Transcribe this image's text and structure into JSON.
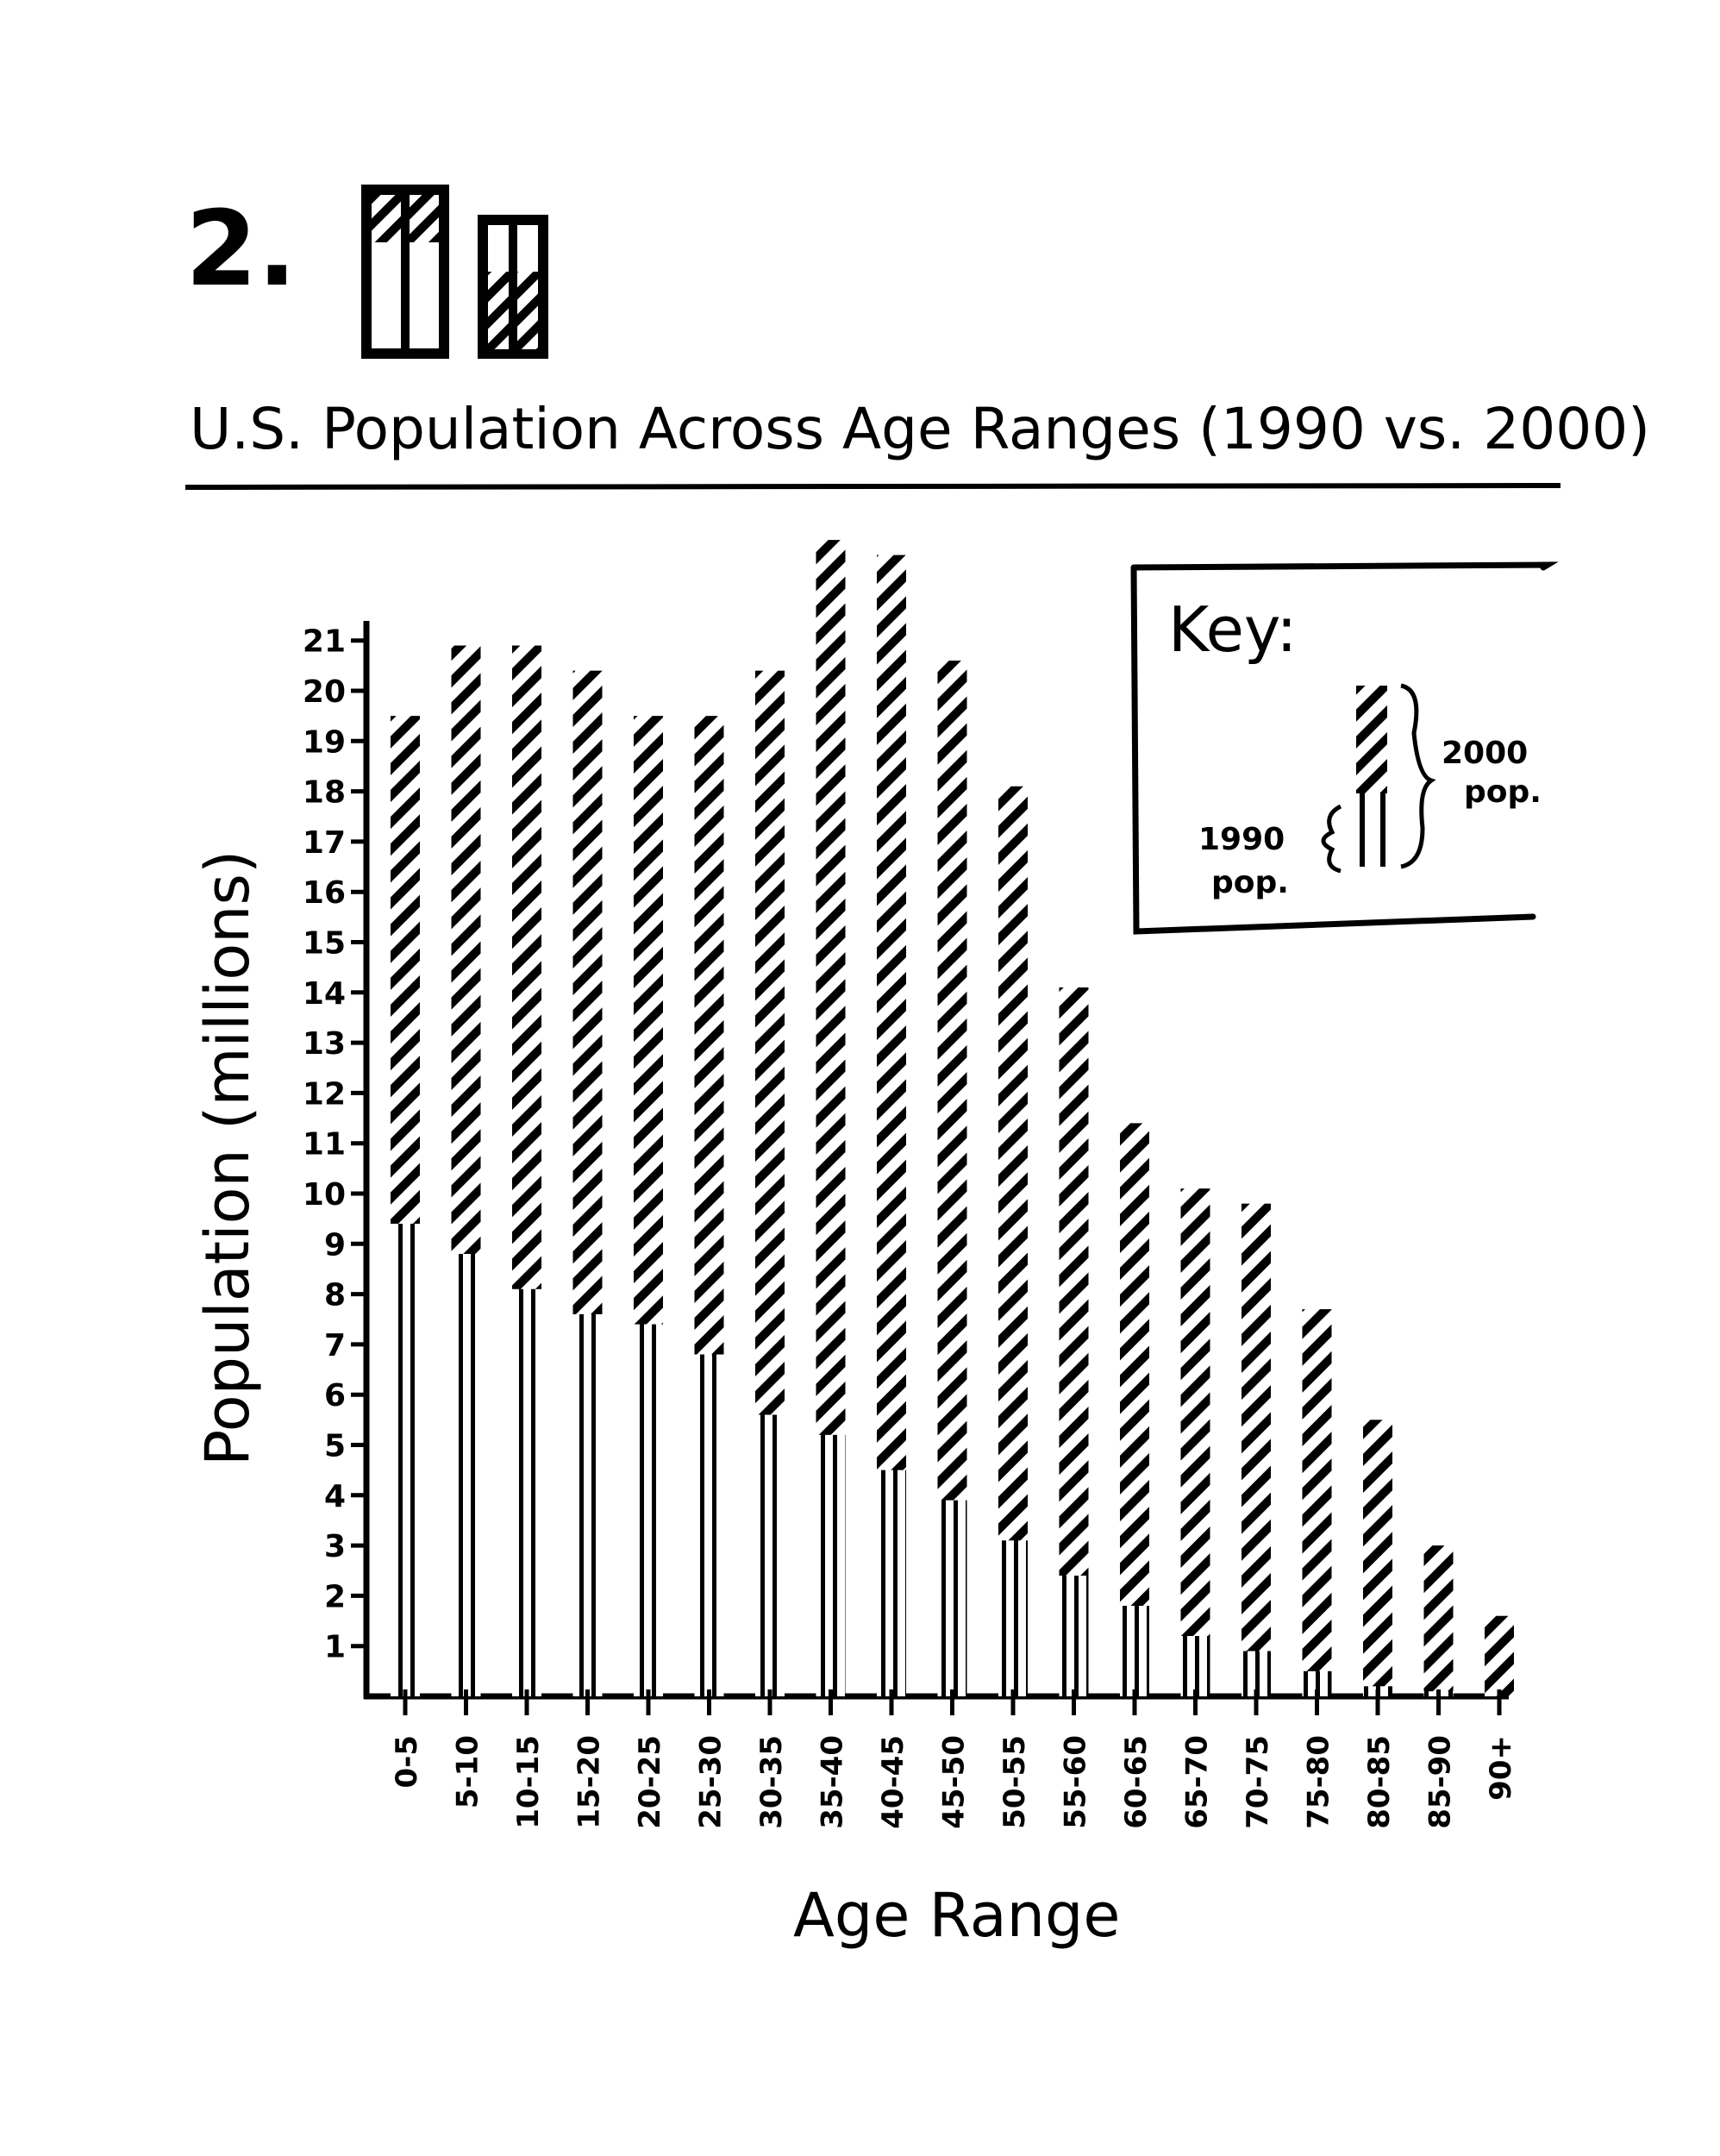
{
  "figure": {
    "number": "2."
  },
  "chart_data": {
    "type": "bar",
    "title": "U.S. Population Across Age Ranges (1990 vs. 2000)",
    "xlabel": "Age Range",
    "ylabel": "Population (millions)",
    "ylim": [
      0,
      23
    ],
    "yticks": [
      1,
      2,
      3,
      4,
      5,
      6,
      7,
      8,
      9,
      10,
      11,
      12,
      13,
      14,
      15,
      16,
      17,
      18,
      19,
      20,
      21
    ],
    "categories": [
      "0-5",
      "5-10",
      "10-15",
      "15-20",
      "20-25",
      "25-30",
      "30-35",
      "35-40",
      "40-45",
      "45-50",
      "50-55",
      "55-60",
      "60-65",
      "65-70",
      "70-75",
      "75-80",
      "80-85",
      "85-90",
      "90+"
    ],
    "series": [
      {
        "name": "1990 pop.",
        "values": [
          9.4,
          8.8,
          8.1,
          7.6,
          7.4,
          6.8,
          5.6,
          5.2,
          4.5,
          3.9,
          3.1,
          2.4,
          1.8,
          1.2,
          0.9,
          0.5,
          0.2,
          0.1,
          0.0
        ]
      },
      {
        "name": "2000 pop.",
        "values": [
          19.5,
          20.9,
          20.9,
          20.4,
          19.5,
          19.5,
          20.4,
          23.0,
          22.7,
          20.6,
          18.1,
          14.1,
          11.4,
          10.1,
          9.8,
          7.7,
          5.5,
          3.0,
          1.6
        ]
      }
    ],
    "legend": {
      "title": "Key:",
      "placement": "top-right",
      "items": [
        {
          "line1": "1990",
          "line2": "pop."
        },
        {
          "line1": "2000",
          "line2": "pop."
        }
      ]
    },
    "grid": false,
    "colors": {
      "ink": "#000000",
      "paper": "#ffffff"
    }
  }
}
